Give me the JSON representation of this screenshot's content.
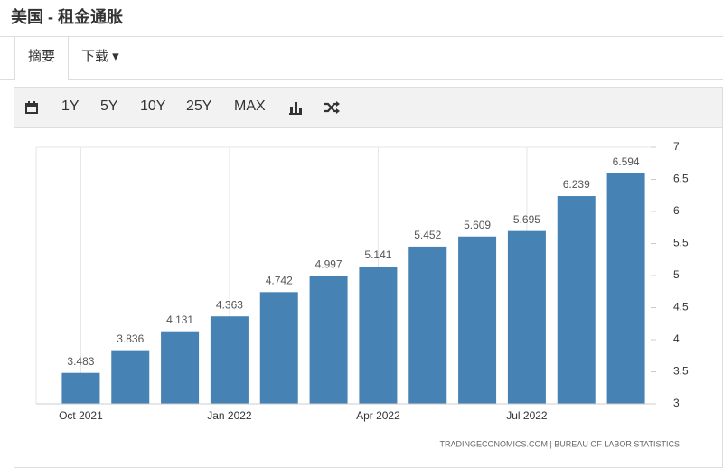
{
  "header": {
    "title": "美国 - 租金通胀"
  },
  "tabs": [
    "摘要",
    "下载"
  ],
  "toolbar": [
    "1Y",
    "5Y",
    "10Y",
    "25Y",
    "MAX"
  ],
  "chart_data": {
    "type": "bar",
    "categories": [
      "Oct 2021",
      null,
      null,
      "Jan 2022",
      null,
      null,
      "Apr 2022",
      null,
      null,
      "Jul 2022",
      null,
      null
    ],
    "values": [
      3.483,
      3.836,
      4.131,
      4.363,
      4.742,
      4.997,
      5.141,
      5.452,
      5.609,
      5.695,
      6.239,
      6.594
    ],
    "color": "#4682b4",
    "ylim": [
      3,
      7
    ],
    "yticks": [
      3,
      3.5,
      4,
      4.5,
      5,
      5.5,
      6,
      6.5,
      7
    ],
    "source": "TRADINGECONOMICS.COM | BUREAU OF LABOR STATISTICS"
  }
}
